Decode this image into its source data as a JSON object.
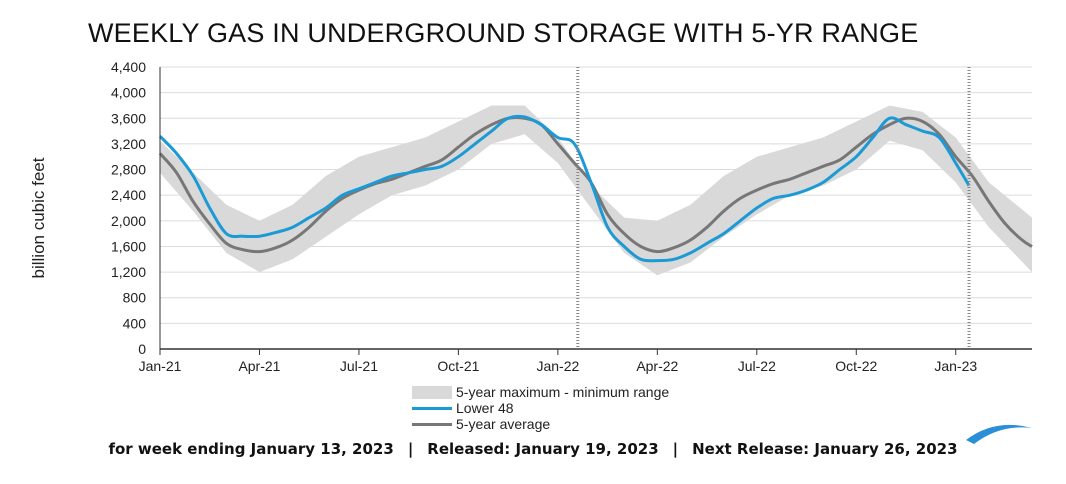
{
  "title": "WEEKLY GAS IN UNDERGROUND STORAGE WITH 5-YR RANGE",
  "footer": {
    "week": "for week ending January 13, 2023",
    "released": "Released: January 19, 2023",
    "next": "Next Release: January 26, 2023",
    "separator": "|"
  },
  "colors": {
    "range": "#d9d9d9",
    "lower48": "#1b9ad6",
    "average": "#777777",
    "grid": "#dcdcdc",
    "axis": "#333333",
    "marker": "#888888",
    "logo": "#2a8fd6"
  },
  "chart_data": {
    "type": "line",
    "title": "WEEKLY GAS IN UNDERGROUND STORAGE WITH 5-YR RANGE",
    "ylabel": "billion cubic feet",
    "xlabel": "",
    "ylim": [
      0,
      4400
    ],
    "yticks": [
      0,
      400,
      800,
      1200,
      1600,
      2000,
      2400,
      2800,
      3200,
      3600,
      4000,
      4400
    ],
    "ytick_labels": [
      "0",
      "400",
      "800",
      "1,200",
      "1,600",
      "2,000",
      "2,400",
      "2,800",
      "3,200",
      "3,600",
      "4,000",
      "4,400"
    ],
    "xlim_months": [
      0,
      26.3
    ],
    "xticks": [
      {
        "label": "Jan-21",
        "month": 0
      },
      {
        "label": "Apr-21",
        "month": 3
      },
      {
        "label": "Jul-21",
        "month": 6
      },
      {
        "label": "Oct-21",
        "month": 9
      },
      {
        "label": "Jan-22",
        "month": 12
      },
      {
        "label": "Apr-22",
        "month": 15
      },
      {
        "label": "Jul-22",
        "month": 18
      },
      {
        "label": "Oct-22",
        "month": 21
      },
      {
        "label": "Jan-23",
        "month": 24
      }
    ],
    "year_markers_month": [
      12.6,
      24.4
    ],
    "grid": true,
    "legend_position": "bottom-center",
    "series": [
      {
        "name": "5-year maximum - minimum range",
        "kind": "band",
        "x": [
          0,
          1,
          2,
          3,
          4,
          5,
          6,
          7,
          8,
          9,
          10,
          11,
          12,
          13,
          14,
          15,
          16,
          17,
          18,
          19,
          20,
          21,
          22,
          23,
          24,
          25,
          26.3
        ],
        "upper": [
          3250,
          2750,
          2250,
          2000,
          2250,
          2700,
          3000,
          3150,
          3300,
          3550,
          3800,
          3800,
          3300,
          2550,
          2050,
          2000,
          2250,
          2700,
          3000,
          3150,
          3300,
          3550,
          3800,
          3700,
          3300,
          2600,
          2050
        ],
        "lower": [
          2750,
          2150,
          1500,
          1200,
          1400,
          1750,
          2100,
          2400,
          2550,
          2800,
          3200,
          3350,
          2900,
          2200,
          1500,
          1150,
          1350,
          1750,
          2100,
          2400,
          2550,
          2800,
          3250,
          3100,
          2600,
          1900,
          1200
        ]
      },
      {
        "name": "Lower 48",
        "kind": "line",
        "x": [
          0,
          0.5,
          1,
          1.5,
          2,
          2.5,
          3,
          3.5,
          4,
          4.5,
          5,
          5.5,
          6,
          6.5,
          7,
          7.5,
          8,
          8.5,
          9,
          9.5,
          10,
          10.5,
          11,
          11.5,
          12,
          12.5,
          13,
          13.5,
          14,
          14.5,
          15,
          15.5,
          16,
          16.5,
          17,
          17.5,
          18,
          18.5,
          19,
          19.5,
          20,
          20.5,
          21,
          21.5,
          22,
          22.5,
          23,
          23.5,
          24,
          24.4
        ],
        "values": [
          3320,
          3050,
          2700,
          2200,
          1800,
          1760,
          1760,
          1820,
          1900,
          2050,
          2200,
          2400,
          2500,
          2600,
          2700,
          2750,
          2800,
          2850,
          3000,
          3200,
          3400,
          3600,
          3620,
          3500,
          3300,
          3200,
          2600,
          1900,
          1600,
          1400,
          1380,
          1400,
          1500,
          1650,
          1800,
          2000,
          2200,
          2350,
          2400,
          2480,
          2600,
          2800,
          3000,
          3300,
          3600,
          3500,
          3400,
          3300,
          2900,
          2550
        ]
      },
      {
        "name": "5-year average",
        "kind": "line",
        "x": [
          0,
          0.5,
          1,
          1.5,
          2,
          2.5,
          3,
          3.5,
          4,
          4.5,
          5,
          5.5,
          6,
          6.5,
          7,
          7.5,
          8,
          8.5,
          9,
          9.5,
          10,
          10.5,
          11,
          11.5,
          12,
          12.5,
          13,
          13.5,
          14,
          14.5,
          15,
          15.5,
          16,
          16.5,
          17,
          17.5,
          18,
          18.5,
          19,
          19.5,
          20,
          20.5,
          21,
          21.5,
          22,
          22.5,
          23,
          23.5,
          24,
          24.5,
          25,
          25.5,
          26,
          26.3
        ],
        "values": [
          3050,
          2750,
          2300,
          1950,
          1650,
          1550,
          1520,
          1580,
          1700,
          1900,
          2150,
          2350,
          2480,
          2580,
          2650,
          2750,
          2850,
          2950,
          3150,
          3350,
          3500,
          3600,
          3600,
          3500,
          3200,
          2900,
          2600,
          2100,
          1800,
          1600,
          1520,
          1580,
          1700,
          1900,
          2150,
          2350,
          2480,
          2580,
          2650,
          2750,
          2850,
          2950,
          3150,
          3350,
          3500,
          3600,
          3550,
          3350,
          3000,
          2700,
          2300,
          1950,
          1700,
          1600
        ]
      }
    ]
  }
}
